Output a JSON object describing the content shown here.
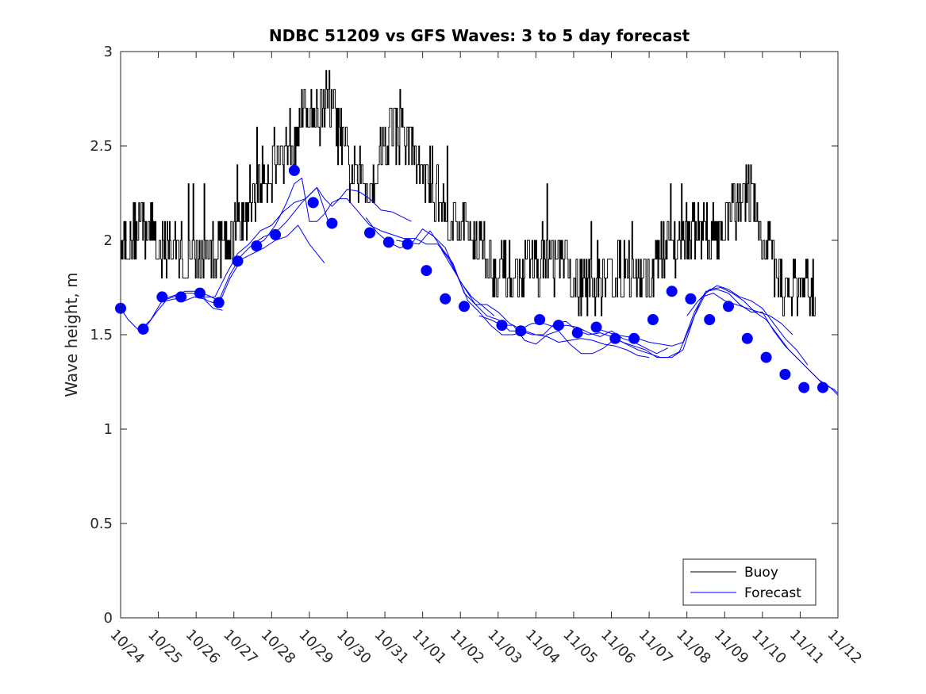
{
  "chart_data": {
    "type": "line",
    "title": "NDBC 51209 vs GFS Waves: 3 to 5 day forecast",
    "xlabel": "",
    "ylabel": "Wave height, m",
    "xlim": [
      0,
      19
    ],
    "ylim": [
      0,
      3
    ],
    "yticks": [
      0,
      0.5,
      1,
      1.5,
      2,
      2.5,
      3
    ],
    "ytick_labels": [
      "0",
      "0.5",
      "1",
      "1.5",
      "2",
      "2.5",
      "3"
    ],
    "xtick_labels": [
      "10/24",
      "10/25",
      "10/26",
      "10/27",
      "10/28",
      "10/29",
      "10/30",
      "10/31",
      "11/01",
      "11/02",
      "11/03",
      "11/04",
      "11/05",
      "11/06",
      "11/07",
      "11/08",
      "11/09",
      "11/10",
      "11/11",
      "11/12"
    ],
    "grid": false,
    "legend": {
      "placement": "bottom-right",
      "entries": [
        {
          "label": "Buoy",
          "color": "#000000"
        },
        {
          "label": "Forecast",
          "color": "#0000ff"
        }
      ]
    },
    "colors": {
      "buoy": "#000000",
      "forecast": "#0000ff",
      "markers": "#0000ff"
    },
    "series": [
      {
        "name": "Buoy",
        "anchors": {
          "x": [
            0,
            0.25,
            0.5,
            0.75,
            1,
            1.25,
            1.5,
            1.75,
            2,
            2.25,
            2.5,
            2.75,
            3,
            3.25,
            3.5,
            3.75,
            4,
            4.25,
            4.5,
            4.75,
            5,
            5.25,
            5.5,
            5.75,
            6,
            6.25,
            6.5,
            6.75,
            7,
            7.25,
            7.5,
            7.75,
            8,
            8.25,
            8.5,
            8.75,
            9,
            9.25,
            9.5,
            9.75,
            10,
            10.25,
            10.5,
            10.75,
            11,
            11.25,
            11.5,
            11.75,
            12,
            12.25,
            12.5,
            12.75,
            13,
            13.25,
            13.5,
            13.75,
            14,
            14.25,
            14.5,
            14.75,
            15,
            15.25,
            15.5,
            15.75,
            16,
            16.25,
            16.5,
            16.75,
            17,
            17.25,
            17.5,
            17.75,
            18,
            18.25,
            18.4
          ],
          "y": [
            2.0,
            2.0,
            2.1,
            2.05,
            2.0,
            1.95,
            1.95,
            1.9,
            1.9,
            1.9,
            1.95,
            2.0,
            2.05,
            2.1,
            2.25,
            2.35,
            2.4,
            2.45,
            2.55,
            2.65,
            2.7,
            2.7,
            2.75,
            2.6,
            2.4,
            2.3,
            2.3,
            2.35,
            2.55,
            2.6,
            2.55,
            2.45,
            2.35,
            2.3,
            2.2,
            2.1,
            2.1,
            2.05,
            2.0,
            1.9,
            1.85,
            1.8,
            1.8,
            1.85,
            1.9,
            1.9,
            1.9,
            1.85,
            1.8,
            1.75,
            1.75,
            1.8,
            1.85,
            1.85,
            1.85,
            1.8,
            1.8,
            1.9,
            1.95,
            2.0,
            2.05,
            2.05,
            2.0,
            2.05,
            2.1,
            2.15,
            2.3,
            2.2,
            2.0,
            1.85,
            1.75,
            1.75,
            1.75,
            1.7,
            1.7
          ]
        }
      },
      {
        "name": "Forecast",
        "runs": [
          {
            "x": [
              0,
              0.2,
              0.45,
              0.7,
              0.95,
              1.2,
              1.45,
              1.7,
              1.95,
              2.2,
              2.45,
              2.7
            ],
            "y": [
              1.64,
              1.58,
              1.53,
              1.55,
              1.62,
              1.68,
              1.69,
              1.68,
              1.7,
              1.69,
              1.64,
              1.63
            ]
          },
          {
            "x": [
              0.5,
              0.8,
              1.1,
              1.4,
              1.7,
              2.0,
              2.3,
              2.6,
              2.9,
              3.2,
              3.5,
              3.8,
              4.1,
              4.4,
              4.7,
              5.0,
              5.2,
              5.4
            ],
            "y": [
              1.52,
              1.58,
              1.68,
              1.7,
              1.73,
              1.73,
              1.68,
              1.66,
              1.8,
              1.9,
              1.93,
              1.96,
              2.0,
              2.02,
              2.08,
              1.98,
              1.93,
              1.88
            ]
          },
          {
            "x": [
              1.0,
              1.3,
              1.6,
              1.9,
              2.2,
              2.5,
              2.8,
              3.1,
              3.4,
              3.7,
              4.0,
              4.3,
              4.6,
              4.9,
              5.2,
              5.5
            ],
            "y": [
              1.68,
              1.7,
              1.72,
              1.72,
              1.7,
              1.7,
              1.82,
              1.93,
              1.98,
              2.05,
              2.08,
              2.15,
              2.2,
              2.22,
              2.28,
              2.1
            ]
          },
          {
            "x": [
              2.0,
              2.3,
              2.6,
              2.9,
              3.2,
              3.5,
              3.8,
              4.1,
              4.4,
              4.6,
              4.8,
              5.0,
              5.2,
              5.4,
              5.6,
              5.8,
              6.0,
              6.3,
              6.6,
              6.9,
              7.2,
              7.5,
              7.7
            ],
            "y": [
              1.72,
              1.71,
              1.68,
              1.82,
              1.92,
              1.98,
              2.02,
              2.04,
              2.1,
              2.15,
              2.2,
              2.24,
              2.28,
              2.22,
              2.18,
              2.22,
              2.27,
              2.26,
              2.22,
              2.16,
              2.15,
              2.12,
              2.1
            ]
          },
          {
            "x": [
              3.5,
              3.8,
              4.1,
              4.4,
              4.6,
              4.8,
              5.0,
              5.2,
              5.4,
              5.6,
              5.8,
              6.0,
              6.3,
              6.6,
              6.9,
              7.2,
              7.5,
              7.8,
              8.1,
              8.4,
              8.7,
              9.0,
              9.3,
              9.6,
              9.9
            ],
            "y": [
              1.97,
              2.0,
              2.08,
              2.2,
              2.3,
              2.33,
              2.1,
              2.1,
              2.14,
              2.2,
              2.22,
              2.22,
              2.15,
              2.08,
              2.05,
              2.03,
              2.01,
              2.01,
              1.98,
              1.98,
              1.9,
              1.78,
              1.7,
              1.65,
              1.6
            ]
          },
          {
            "x": [
              6.5,
              6.8,
              7.1,
              7.4,
              7.7,
              8.0,
              8.3,
              8.6,
              8.9,
              9.2,
              9.5,
              9.8,
              10.1,
              10.4,
              10.7,
              11.0,
              11.3,
              11.6,
              11.9,
              12.2,
              12.5,
              12.8,
              13.1,
              13.4,
              13.7,
              14.0
            ],
            "y": [
              2.12,
              2.04,
              1.99,
              1.96,
              1.98,
              2.06,
              2.02,
              1.96,
              1.82,
              1.68,
              1.62,
              1.55,
              1.5,
              1.5,
              1.52,
              1.5,
              1.49,
              1.46,
              1.47,
              1.48,
              1.47,
              1.45,
              1.44,
              1.42,
              1.39,
              1.38
            ]
          },
          {
            "x": [
              7.3,
              7.6,
              7.9,
              8.2,
              8.5,
              8.8,
              9.1,
              9.4,
              9.7,
              10.0,
              10.3,
              10.6,
              10.9,
              11.2,
              11.5,
              11.8,
              12.1,
              12.4,
              12.7,
              13.0,
              13.3,
              13.6,
              13.9,
              14.2,
              14.5
            ],
            "y": [
              2.0,
              1.99,
              1.98,
              2.05,
              1.96,
              1.88,
              1.72,
              1.66,
              1.66,
              1.62,
              1.56,
              1.53,
              1.56,
              1.56,
              1.54,
              1.55,
              1.54,
              1.51,
              1.49,
              1.52,
              1.48,
              1.46,
              1.43,
              1.4,
              1.43
            ]
          },
          {
            "x": [
              8.5,
              8.8,
              9.1,
              9.4,
              9.7,
              10.0,
              10.3,
              10.6,
              10.9,
              11.2,
              11.5,
              11.8,
              12.1,
              12.4,
              12.7,
              13.0,
              13.3,
              13.6,
              13.9,
              14.2,
              14.5,
              14.8,
              15.1,
              15.4,
              15.7,
              16.0,
              16.3,
              16.6,
              16.9,
              17.2,
              17.5,
              17.8
            ],
            "y": [
              1.95,
              1.85,
              1.75,
              1.66,
              1.6,
              1.58,
              1.52,
              1.52,
              1.5,
              1.5,
              1.56,
              1.57,
              1.52,
              1.5,
              1.51,
              1.49,
              1.46,
              1.44,
              1.42,
              1.38,
              1.38,
              1.41,
              1.55,
              1.7,
              1.72,
              1.68,
              1.66,
              1.64,
              1.62,
              1.6,
              1.56,
              1.5
            ]
          },
          {
            "x": [
              9.5,
              9.8,
              10.1,
              10.4,
              10.7,
              11.0,
              11.3,
              11.6,
              11.9,
              12.2,
              12.5,
              12.8,
              13.1,
              13.4,
              13.7,
              14.0,
              14.3,
              14.6,
              14.9,
              15.2,
              15.5,
              15.8,
              16.1,
              16.4,
              16.7,
              17.0,
              17.3,
              17.6,
              17.9,
              18.2
            ],
            "y": [
              1.6,
              1.58,
              1.55,
              1.55,
              1.47,
              1.45,
              1.5,
              1.52,
              1.45,
              1.4,
              1.4,
              1.43,
              1.48,
              1.45,
              1.42,
              1.4,
              1.38,
              1.38,
              1.42,
              1.6,
              1.72,
              1.76,
              1.74,
              1.7,
              1.68,
              1.64,
              1.56,
              1.48,
              1.42,
              1.34
            ]
          },
          {
            "x": [
              12.5,
              12.8,
              13.1,
              13.4,
              13.7,
              14.0,
              14.3,
              14.6,
              14.9,
              15.2,
              15.5,
              15.8,
              16.1,
              16.4,
              16.7,
              17.0,
              17.3,
              17.6,
              17.9,
              18.2,
              18.5,
              18.8,
              19.0
            ],
            "y": [
              1.54,
              1.52,
              1.5,
              1.49,
              1.48,
              1.46,
              1.45,
              1.44,
              1.46,
              1.62,
              1.73,
              1.74,
              1.72,
              1.66,
              1.62,
              1.62,
              1.52,
              1.44,
              1.38,
              1.32,
              1.26,
              1.22,
              1.18
            ]
          },
          {
            "x": [
              15.0,
              15.3,
              15.6,
              15.9,
              16.2,
              16.5,
              16.8,
              17.1,
              17.4,
              17.7,
              18.0,
              18.3,
              18.6,
              18.9,
              19.0
            ],
            "y": [
              1.6,
              1.68,
              1.74,
              1.75,
              1.72,
              1.68,
              1.62,
              1.58,
              1.5,
              1.42,
              1.36,
              1.3,
              1.24,
              1.21,
              1.19
            ]
          }
        ],
        "markers": {
          "x": [
            0,
            0.6,
            1.1,
            1.6,
            2.1,
            2.6,
            3.1,
            3.6,
            4.1,
            4.6,
            5.1,
            5.6,
            6.6,
            7.1,
            7.6,
            8.1,
            8.6,
            9.1,
            10.1,
            10.6,
            11.1,
            11.6,
            12.1,
            12.6,
            13.1,
            13.6,
            14.1,
            14.6,
            15.1,
            15.6,
            16.1,
            16.6,
            17.1,
            17.6,
            18.1,
            18.6
          ],
          "y": [
            1.64,
            1.53,
            1.7,
            1.7,
            1.72,
            1.67,
            1.89,
            1.97,
            2.03,
            2.37,
            2.2,
            2.09,
            2.04,
            1.99,
            1.98,
            1.84,
            1.69,
            1.65,
            1.55,
            1.52,
            1.58,
            1.55,
            1.51,
            1.54,
            1.48,
            1.48,
            1.58,
            1.73,
            1.69,
            1.58,
            1.65,
            1.48,
            1.38,
            1.29,
            1.22,
            1.22
          ]
        }
      }
    ]
  }
}
